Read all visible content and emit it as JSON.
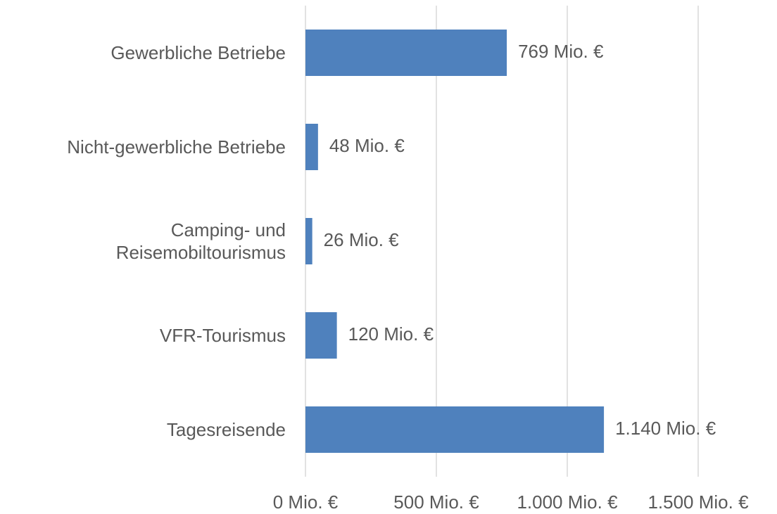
{
  "chart_data": {
    "type": "barh",
    "categories": [
      "Gewerbliche Betriebe",
      "Nicht-gewerbliche Betriebe",
      "Camping- und\nReisemobiltourismus",
      "VFR-Tourismus",
      "Tagesreisende"
    ],
    "values": [
      769,
      48,
      26,
      120,
      1140
    ],
    "value_labels": [
      "769 Mio. €",
      "48 Mio. €",
      "26 Mio. €",
      "120 Mio. €",
      "1.140 Mio. €"
    ],
    "color": "#4f81bd",
    "xlim": [
      0,
      1500
    ],
    "xticks": [
      {
        "value": 0,
        "label": "0 Mio. €"
      },
      {
        "value": 500,
        "label": "500 Mio. €"
      },
      {
        "value": 1000,
        "label": "1.000 Mio. €"
      },
      {
        "value": 1500,
        "label": "1.500 Mio. €"
      }
    ],
    "grid": true
  }
}
